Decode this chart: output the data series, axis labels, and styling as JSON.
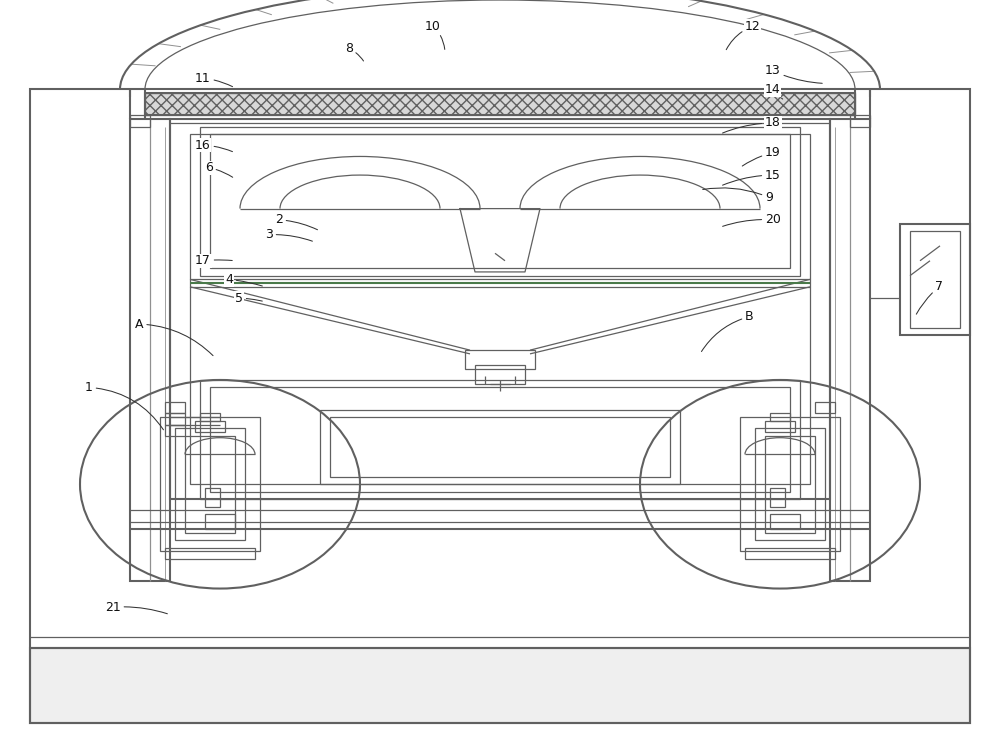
{
  "bg_color": "#ffffff",
  "lc": "#606060",
  "lc2": "#909090",
  "gc": "#4a7a4a",
  "label_color": "#111111",
  "fig_width": 10.0,
  "fig_height": 7.45,
  "labels": {
    "10": {
      "text": [
        42.5,
        96.5
      ],
      "target": [
        44.5,
        93.0
      ],
      "rad": -0.2
    },
    "12": {
      "text": [
        74.5,
        96.5
      ],
      "target": [
        72.5,
        93.0
      ],
      "rad": 0.2
    },
    "8": {
      "text": [
        34.5,
        93.5
      ],
      "target": [
        36.5,
        91.5
      ],
      "rad": -0.15
    },
    "13": {
      "text": [
        76.5,
        90.5
      ],
      "target": [
        82.5,
        88.8
      ],
      "rad": 0.1
    },
    "11": {
      "text": [
        19.5,
        89.5
      ],
      "target": [
        23.5,
        88.2
      ],
      "rad": -0.1
    },
    "14": {
      "text": [
        76.5,
        88.0
      ],
      "target": [
        78.5,
        86.5
      ],
      "rad": 0.1
    },
    "18": {
      "text": [
        76.5,
        83.5
      ],
      "target": [
        72.0,
        82.0
      ],
      "rad": 0.1
    },
    "16": {
      "text": [
        19.5,
        80.5
      ],
      "target": [
        23.5,
        79.5
      ],
      "rad": -0.1
    },
    "6": {
      "text": [
        20.5,
        77.5
      ],
      "target": [
        23.5,
        76.0
      ],
      "rad": -0.1
    },
    "19": {
      "text": [
        76.5,
        79.5
      ],
      "target": [
        74.0,
        77.5
      ],
      "rad": 0.1
    },
    "15": {
      "text": [
        76.5,
        76.5
      ],
      "target": [
        72.0,
        75.0
      ],
      "rad": 0.1
    },
    "9": {
      "text": [
        76.5,
        73.5
      ],
      "target": [
        70.0,
        74.5
      ],
      "rad": 0.15
    },
    "17": {
      "text": [
        19.5,
        65.0
      ],
      "target": [
        23.5,
        65.0
      ],
      "rad": -0.05
    },
    "2": {
      "text": [
        27.5,
        70.5
      ],
      "target": [
        32.0,
        69.0
      ],
      "rad": -0.1
    },
    "3": {
      "text": [
        26.5,
        68.5
      ],
      "target": [
        31.5,
        67.5
      ],
      "rad": -0.1
    },
    "20": {
      "text": [
        76.5,
        70.5
      ],
      "target": [
        72.0,
        69.5
      ],
      "rad": 0.1
    },
    "4": {
      "text": [
        22.5,
        62.5
      ],
      "target": [
        26.5,
        61.5
      ],
      "rad": -0.05
    },
    "5": {
      "text": [
        23.5,
        60.0
      ],
      "target": [
        26.5,
        59.5
      ],
      "rad": -0.05
    },
    "A": {
      "text": [
        13.5,
        56.5
      ],
      "target": [
        21.5,
        52.0
      ],
      "rad": -0.2
    },
    "1": {
      "text": [
        8.5,
        48.0
      ],
      "target": [
        16.5,
        42.0
      ],
      "rad": -0.25
    },
    "21": {
      "text": [
        10.5,
        18.5
      ],
      "target": [
        17.0,
        17.5
      ],
      "rad": -0.1
    },
    "B": {
      "text": [
        74.5,
        57.5
      ],
      "target": [
        70.0,
        52.5
      ],
      "rad": 0.2
    },
    "7": {
      "text": [
        93.5,
        61.5
      ],
      "target": [
        91.5,
        57.5
      ],
      "rad": 0.1
    }
  }
}
